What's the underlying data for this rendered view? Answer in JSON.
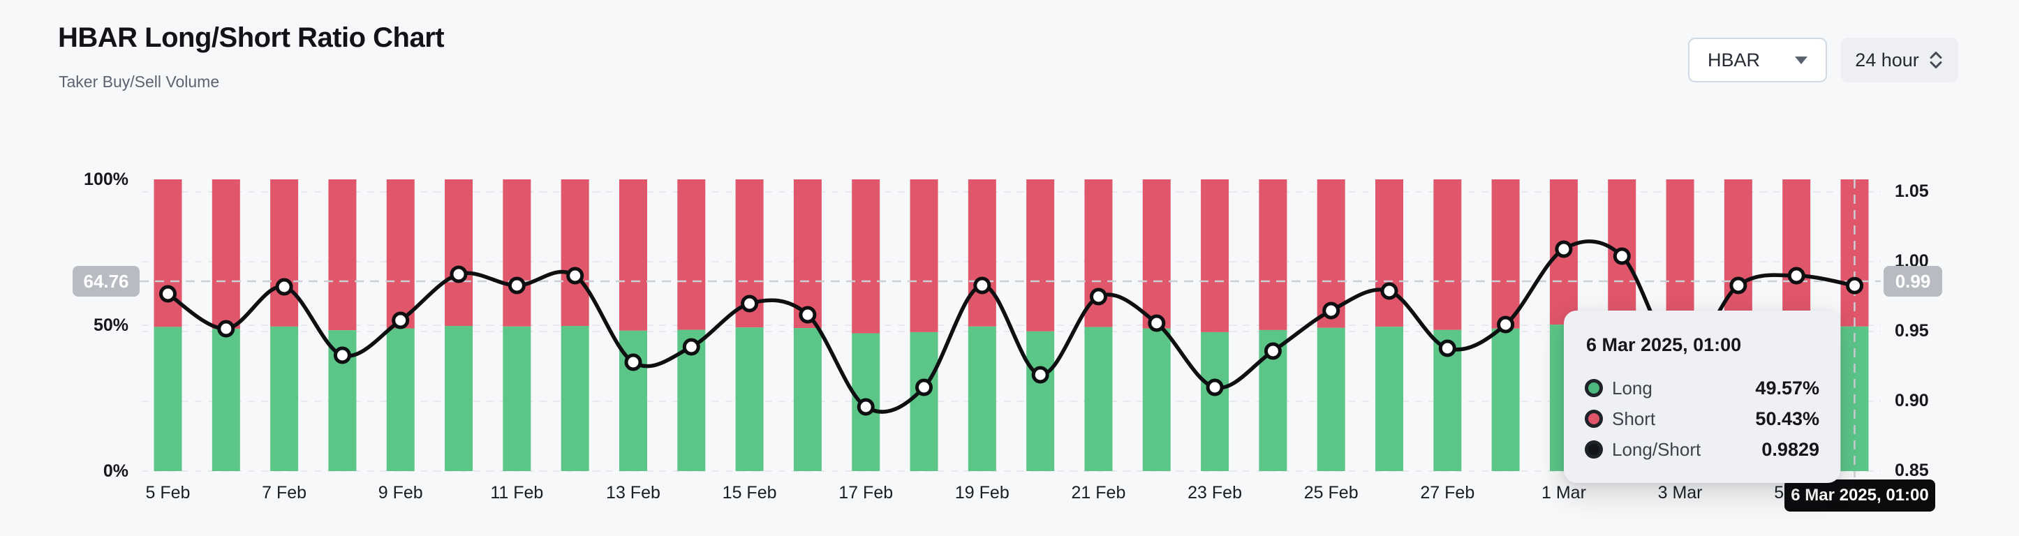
{
  "page": {
    "title": "HBAR Long/Short Ratio Chart",
    "subtitle": "Taker Buy/Sell Volume"
  },
  "controls": {
    "coin": {
      "value": "HBAR"
    },
    "interval": {
      "value": "24 hour"
    }
  },
  "axes": {
    "left_ticks": [
      "100%",
      "50%",
      "0%"
    ],
    "right_ticks": [
      "1.05",
      "1.00",
      "0.95",
      "0.90",
      "0.85"
    ],
    "x_ticks": [
      "5 Feb",
      "7 Feb",
      "9 Feb",
      "11 Feb",
      "13 Feb",
      "15 Feb",
      "17 Feb",
      "19 Feb",
      "21 Feb",
      "23 Feb",
      "25 Feb",
      "27 Feb",
      "1 Mar",
      "3 Mar",
      "5 Mar"
    ]
  },
  "crosshair": {
    "left_badge": "64.76",
    "right_badge": "0.99",
    "x_badge": "6 Mar 2025, 01:00"
  },
  "tooltip": {
    "title": "6 Mar 2025, 01:00",
    "rows": [
      {
        "label": "Long",
        "value": "49.57%",
        "color": "#4db87d"
      },
      {
        "label": "Short",
        "value": "50.43%",
        "color": "#e0556a"
      },
      {
        "label": "Long/Short",
        "value": "0.9829",
        "color": "#141519"
      }
    ]
  },
  "colors": {
    "long": "#5cc689",
    "short": "#e0566a",
    "line": "#0e0f11",
    "grid": "#e7e9ec",
    "crosshair": "#ccd0d6",
    "marker_fill": "#ffffff"
  },
  "chart_data": {
    "type": "stacked-bar-with-line",
    "title": "HBAR Long/Short Ratio Chart",
    "subtitle": "Taker Buy/Sell Volume",
    "categories": [
      "5 Feb",
      "6 Feb",
      "7 Feb",
      "8 Feb",
      "9 Feb",
      "10 Feb",
      "11 Feb",
      "12 Feb",
      "13 Feb",
      "14 Feb",
      "15 Feb",
      "16 Feb",
      "17 Feb",
      "18 Feb",
      "19 Feb",
      "20 Feb",
      "21 Feb",
      "22 Feb",
      "23 Feb",
      "24 Feb",
      "25 Feb",
      "26 Feb",
      "27 Feb",
      "28 Feb",
      "1 Mar",
      "2 Mar",
      "3 Mar",
      "4 Mar",
      "5 Mar",
      "6 Mar"
    ],
    "series": [
      {
        "name": "Long",
        "unit": "%",
        "axis": "left",
        "color": "#5cc689",
        "values": [
          49.42,
          48.77,
          49.55,
          48.27,
          48.93,
          49.77,
          49.57,
          49.75,
          48.13,
          48.43,
          49.24,
          49.03,
          47.26,
          47.64,
          49.57,
          47.89,
          49.37,
          48.88,
          47.64,
          48.35,
          49.11,
          49.47,
          48.4,
          48.85,
          50.22,
          50.1,
          48.19,
          49.57,
          49.75,
          49.57
        ]
      },
      {
        "name": "Short",
        "unit": "%",
        "axis": "left",
        "color": "#e0566a",
        "values": [
          50.58,
          51.23,
          50.45,
          51.73,
          51.07,
          50.23,
          50.43,
          50.25,
          51.87,
          51.57,
          50.76,
          50.97,
          52.74,
          52.36,
          50.43,
          52.11,
          50.63,
          51.12,
          52.36,
          51.65,
          50.89,
          50.53,
          51.6,
          51.15,
          49.78,
          49.9,
          51.81,
          50.43,
          50.25,
          50.43
        ]
      },
      {
        "name": "Long/Short",
        "unit": "ratio",
        "axis": "right",
        "color": "#0e0f11",
        "values": [
          0.977,
          0.952,
          0.982,
          0.933,
          0.958,
          0.991,
          0.983,
          0.99,
          0.928,
          0.939,
          0.97,
          0.962,
          0.896,
          0.91,
          0.983,
          0.919,
          0.975,
          0.956,
          0.91,
          0.936,
          0.965,
          0.979,
          0.938,
          0.955,
          1.009,
          1.004,
          0.93,
          0.983,
          0.99,
          0.9829
        ]
      }
    ],
    "left_axis": {
      "range": [
        0,
        100
      ],
      "ticks": [
        0,
        50,
        100
      ],
      "unit": "%"
    },
    "right_axis": {
      "range": [
        0.85,
        1.05
      ],
      "ticks": [
        0.85,
        0.9,
        0.95,
        1.0,
        1.05
      ],
      "unit": "ratio"
    },
    "grid": "horizontal-dashed",
    "hovered_point": {
      "category": "6 Mar 2025, 01:00",
      "long": "49.57%",
      "short": "50.43%",
      "long_short": "0.9829"
    }
  }
}
